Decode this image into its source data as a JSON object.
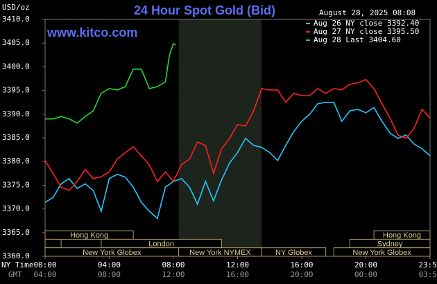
{
  "chart_data": {
    "type": "line",
    "title": "24 Hour Spot Gold (Bid)",
    "subtitle": "www.kitco.com",
    "y_label": "USD/oz",
    "timestamp": "August 28, 2025 08:08",
    "x_label": "NY Time",
    "x2_label": "GMT",
    "xlim": [
      0,
      24
    ],
    "xticks": [
      {
        "value": 0,
        "label": "00:00"
      },
      {
        "value": 4,
        "label": "04:00"
      },
      {
        "value": 8,
        "label": "08:00"
      },
      {
        "value": 12,
        "label": "12:00"
      },
      {
        "value": 16,
        "label": "16:00"
      },
      {
        "value": 20,
        "label": "20:00"
      },
      {
        "value": 24,
        "label": "23:59"
      }
    ],
    "x2ticks": [
      {
        "value": 0,
        "label": "04:00"
      },
      {
        "value": 4,
        "label": "08:00"
      },
      {
        "value": 8,
        "label": "12:00"
      },
      {
        "value": 12,
        "label": "16:00"
      },
      {
        "value": 16,
        "label": "20:00"
      },
      {
        "value": 20,
        "label": "00:00"
      },
      {
        "value": 24,
        "label": "03:59"
      }
    ],
    "ylim": [
      3360,
      3410
    ],
    "yticks": [
      {
        "value": 3360,
        "label": "3360.0"
      },
      {
        "value": 3365,
        "label": "3365.0"
      },
      {
        "value": 3370,
        "label": "3370.0"
      },
      {
        "value": 3375,
        "label": "3375.0"
      },
      {
        "value": 3380,
        "label": "3380.0"
      },
      {
        "value": 3385,
        "label": "3385.0"
      },
      {
        "value": 3390,
        "label": "3390.0"
      },
      {
        "value": 3395,
        "label": "3395.0"
      },
      {
        "value": 3400,
        "label": "3400.0"
      },
      {
        "value": 3405,
        "label": "3405.0"
      },
      {
        "value": 3410,
        "label": "3410.0"
      }
    ],
    "grid": false,
    "highlight_range": [
      8.33,
      13.5
    ],
    "session_rows": [
      [
        {
          "label": "Hong Kong",
          "start": 0,
          "end": 5.5
        },
        {
          "label": "Hong Kong",
          "start": 20.5,
          "end": 24
        }
      ],
      [
        {
          "label": null,
          "start": 0,
          "end": 1
        },
        {
          "label": "London",
          "start": 3.5,
          "end": 11
        },
        {
          "label": "Sydney",
          "start": 19,
          "end": 24
        }
      ],
      [
        {
          "label": "New York Globex",
          "start": 0,
          "end": 8.33
        },
        {
          "label": "New York NYMEX",
          "start": 8.33,
          "end": 13.5
        },
        {
          "label": "NY Globex",
          "start": 13.5,
          "end": 17.5
        },
        {
          "label": "New York Globex",
          "start": 18,
          "end": 24
        }
      ]
    ],
    "series": [
      {
        "name": "Aug 26 NY close 3392.40",
        "color": "#22c8ff",
        "x": [
          0,
          0.5,
          1,
          1.5,
          2,
          2.5,
          3,
          3.5,
          4,
          4.5,
          5,
          5.5,
          6,
          6.5,
          7,
          7.5,
          8,
          8.5,
          9,
          9.5,
          10,
          10.5,
          11,
          11.5,
          12,
          12.5,
          13,
          13.5,
          14,
          14.5,
          15,
          15.5,
          16,
          16.5,
          17,
          17.5,
          18,
          18.5,
          19,
          19.5,
          20,
          20.5,
          21,
          21.5,
          22,
          22.5,
          23,
          23.5,
          24
        ],
        "values": [
          3371.4,
          3372.4,
          3375.3,
          3376.4,
          3374.3,
          3375.3,
          3373.9,
          3369.5,
          3376.4,
          3377.3,
          3376.7,
          3374.6,
          3371.4,
          3369.5,
          3368.0,
          3374.6,
          3375.8,
          3376.4,
          3374.6,
          3371.0,
          3375.8,
          3371.7,
          3376.1,
          3379.7,
          3381.9,
          3384.9,
          3383.4,
          3383.0,
          3381.9,
          3380.2,
          3383.4,
          3386.3,
          3388.5,
          3390.0,
          3392.2,
          3392.5,
          3392.5,
          3388.5,
          3390.7,
          3391.0,
          3390.3,
          3391.4,
          3388.5,
          3386.0,
          3384.9,
          3385.6,
          3383.7,
          3382.7,
          3381.2
        ]
      },
      {
        "name": "Aug 27 NY close 3395.50",
        "color": "#ff2020",
        "x": [
          0,
          0.5,
          1,
          1.5,
          2,
          2.5,
          3,
          3.5,
          4,
          4.5,
          5,
          5.5,
          6,
          6.5,
          7,
          7.5,
          8,
          8.5,
          9,
          9.5,
          10,
          10.5,
          11,
          11.5,
          12,
          12.5,
          13,
          13.5,
          14,
          14.5,
          15,
          15.5,
          16,
          16.5,
          17,
          17.5,
          18,
          18.5,
          19,
          19.5,
          20,
          20.5,
          21,
          21.5,
          22,
          22.5,
          23,
          23.5,
          24
        ],
        "values": [
          3380.2,
          3377.5,
          3374.6,
          3373.9,
          3375.8,
          3378.3,
          3376.4,
          3376.8,
          3377.8,
          3380.5,
          3381.9,
          3383.1,
          3381.2,
          3379.3,
          3375.8,
          3377.8,
          3375.8,
          3379.3,
          3380.5,
          3384.1,
          3383.4,
          3377.5,
          3382.7,
          3384.9,
          3387.8,
          3387.5,
          3390.7,
          3395.4,
          3395.1,
          3395.1,
          3392.5,
          3394.4,
          3393.9,
          3393.9,
          3395.4,
          3394.4,
          3395.4,
          3395.1,
          3396.3,
          3396.6,
          3397.3,
          3395.4,
          3392.2,
          3389.2,
          3385.6,
          3384.9,
          3387.0,
          3391.0,
          3389.2
        ]
      },
      {
        "name": "Aug 28 Last 3404.60",
        "color": "#22dd22",
        "x": [
          0,
          0.5,
          1,
          1.5,
          2,
          2.5,
          3,
          3.5,
          4,
          4.5,
          5,
          5.5,
          6,
          6.5,
          7,
          7.5,
          7.75,
          8,
          8.13
        ],
        "values": [
          3389.0,
          3389.0,
          3389.5,
          3389.0,
          3388.1,
          3389.5,
          3390.7,
          3394.4,
          3395.4,
          3395.1,
          3395.8,
          3399.5,
          3399.5,
          3395.4,
          3395.8,
          3396.8,
          3402.4,
          3404.9,
          3404.6
        ]
      }
    ]
  }
}
